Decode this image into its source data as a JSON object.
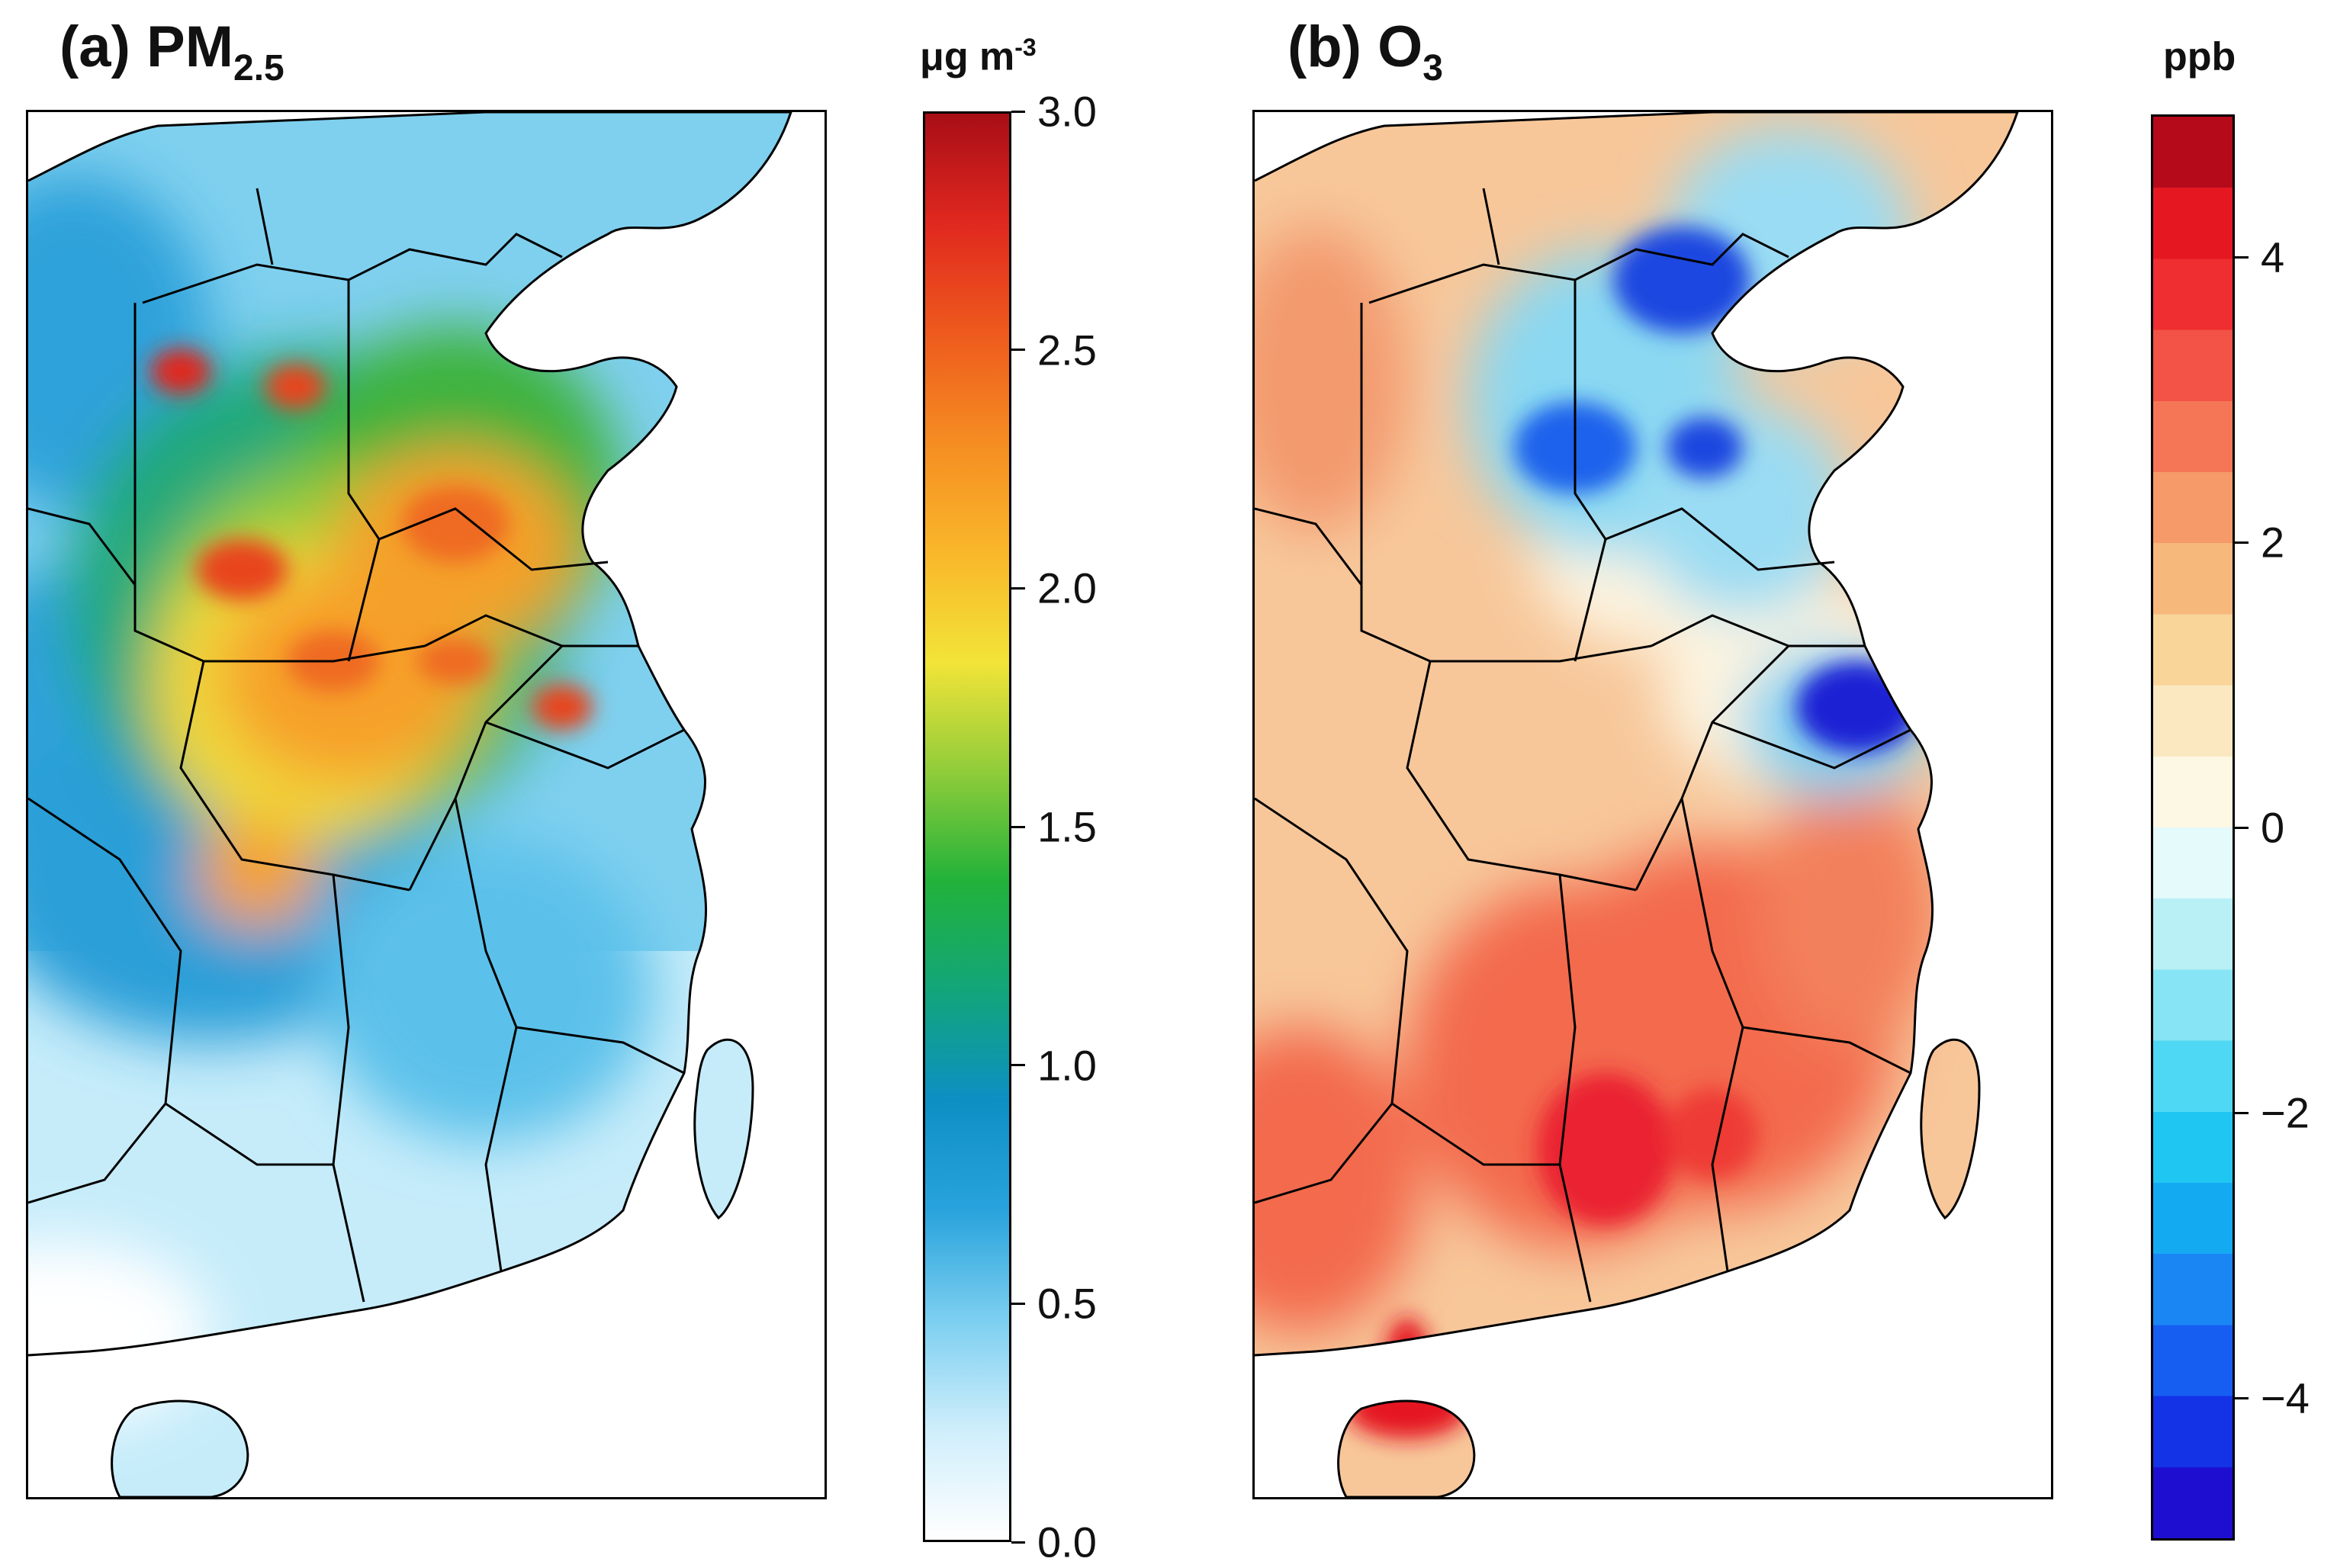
{
  "panels": [
    {
      "title_prefix": "(a) PM",
      "title_sub": "2.5",
      "unit_base": "μg m",
      "unit_exp": "-3",
      "colorbar": {
        "colors": [
          "#ffffff",
          "#cfeefb",
          "#7ccff0",
          "#29a3dc",
          "#0d8fc4",
          "#12a57a",
          "#22b23a",
          "#8fcc3a",
          "#f2e438",
          "#f9b72a",
          "#f58d22",
          "#ee5a1d",
          "#e0281f",
          "#a80e16"
        ],
        "min": 0.0,
        "max": 3.0,
        "ticks": [
          "0.0",
          "0.5",
          "1.0",
          "1.5",
          "2.0",
          "2.5",
          "3.0"
        ],
        "tick_values": [
          0.0,
          0.5,
          1.0,
          1.5,
          2.0,
          2.5,
          3.0
        ]
      }
    },
    {
      "title_prefix": "(b) O",
      "title_sub": "3",
      "unit_base": "ppb",
      "unit_exp": "",
      "colorbar": {
        "levels": [
          "#1e0fd0",
          "#1432e6",
          "#165ef2",
          "#1a86f4",
          "#14aaf2",
          "#20c6f2",
          "#4fd8f4",
          "#86e4f4",
          "#b8f0f6",
          "#e4fafb",
          "#fdf8e4",
          "#fbe8c0",
          "#f9d59a",
          "#f7b87c",
          "#f59a68",
          "#f47656",
          "#f35246",
          "#ee2e30",
          "#e51822",
          "#b50a1a"
        ],
        "min": -5,
        "max": 5,
        "ticks": [
          "−4",
          "−2",
          "0",
          "2",
          "4"
        ],
        "tick_values": [
          -4,
          -2,
          0,
          2,
          4
        ]
      }
    }
  ]
}
